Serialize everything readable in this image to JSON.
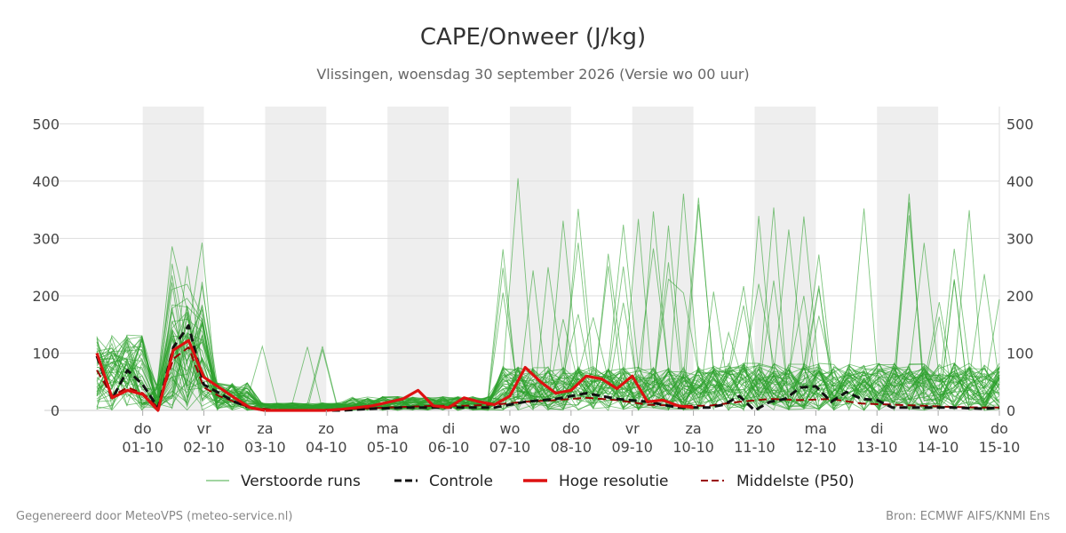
{
  "chart_data": {
    "type": "line",
    "title": "CAPE/Onweer (J/kg)",
    "subtitle": "Vlissingen, woensdag 30 september 2026 (Versie wo 00 uur)",
    "ylim": [
      0,
      530
    ],
    "yticks": [
      0,
      100,
      200,
      300,
      400,
      500
    ],
    "x_start": 0,
    "x_end": 14.75,
    "x_ticks": [
      {
        "day": "do",
        "date": "01-10",
        "t": 0.75
      },
      {
        "day": "vr",
        "date": "02-10",
        "t": 1.75
      },
      {
        "day": "za",
        "date": "03-10",
        "t": 2.75
      },
      {
        "day": "zo",
        "date": "04-10",
        "t": 3.75
      },
      {
        "day": "ma",
        "date": "05-10",
        "t": 4.75
      },
      {
        "day": "di",
        "date": "06-10",
        "t": 5.75
      },
      {
        "day": "wo",
        "date": "07-10",
        "t": 6.75
      },
      {
        "day": "do",
        "date": "08-10",
        "t": 7.75
      },
      {
        "day": "vr",
        "date": "09-10",
        "t": 8.75
      },
      {
        "day": "za",
        "date": "10-10",
        "t": 9.75
      },
      {
        "day": "zo",
        "date": "11-10",
        "t": 10.75
      },
      {
        "day": "ma",
        "date": "12-10",
        "t": 11.75
      },
      {
        "day": "di",
        "date": "13-10",
        "t": 12.75
      },
      {
        "day": "wo",
        "date": "14-10",
        "t": 13.75
      },
      {
        "day": "do",
        "date": "15-10",
        "t": 14.75
      }
    ],
    "night_bands": [
      [
        0.75,
        1.75
      ],
      [
        2.75,
        3.75
      ],
      [
        4.75,
        5.75
      ],
      [
        6.75,
        7.75
      ],
      [
        8.75,
        9.75
      ],
      [
        10.75,
        11.75
      ],
      [
        12.75,
        13.75
      ]
    ],
    "series": [
      {
        "name": "Hoge resolutie",
        "color": "#dd1111",
        "style": "solid",
        "x": [
          0,
          0.25,
          0.5,
          0.75,
          1.0,
          1.25,
          1.5,
          1.75,
          2.0,
          2.25,
          2.5,
          2.75,
          3.0,
          3.25,
          3.5,
          3.75,
          4.0,
          4.25,
          4.5,
          4.75,
          5.0,
          5.25,
          5.5,
          5.75,
          6.0,
          6.25,
          6.5,
          6.75,
          7.0,
          7.25,
          7.5,
          7.75,
          8.0,
          8.25,
          8.5,
          8.75,
          9.0,
          9.25,
          9.5,
          9.75
        ],
        "y": [
          100,
          22,
          35,
          28,
          0,
          105,
          122,
          58,
          40,
          22,
          5,
          0,
          0,
          0,
          0,
          0,
          2,
          5,
          8,
          14,
          20,
          35,
          8,
          5,
          22,
          15,
          10,
          25,
          75,
          50,
          30,
          35,
          60,
          55,
          38,
          60,
          15,
          18,
          8,
          5
        ]
      },
      {
        "name": "Controle",
        "color": "#111111",
        "style": "dash",
        "x": [
          0,
          0.25,
          0.5,
          0.75,
          1.0,
          1.25,
          1.5,
          1.75,
          2.0,
          2.25,
          2.5,
          2.75,
          3.0,
          3.5,
          4.0,
          4.5,
          5.0,
          5.5,
          6.0,
          6.5,
          7.0,
          7.5,
          8.0,
          8.5,
          9.0,
          9.5,
          10.0,
          10.25,
          10.5,
          10.75,
          11.0,
          11.25,
          11.5,
          11.75,
          12.0,
          12.25,
          12.5,
          12.75,
          13.0,
          13.5,
          14.0,
          14.5,
          14.75
        ],
        "y": [
          95,
          20,
          70,
          45,
          5,
          110,
          148,
          45,
          30,
          15,
          5,
          0,
          0,
          0,
          0,
          3,
          5,
          5,
          5,
          5,
          15,
          20,
          30,
          20,
          15,
          5,
          5,
          10,
          25,
          0,
          15,
          20,
          40,
          42,
          15,
          32,
          20,
          18,
          5,
          5,
          5,
          3,
          5
        ]
      },
      {
        "name": "Middelste (P50)",
        "color": "#990000",
        "style": "dash",
        "x": [
          0,
          0.25,
          0.5,
          0.75,
          1.0,
          1.25,
          1.5,
          1.75,
          2.0,
          2.5,
          3.0,
          3.5,
          4.0,
          4.5,
          5.0,
          5.5,
          6.0,
          6.5,
          7.0,
          7.5,
          8.0,
          8.5,
          9.0,
          9.5,
          10.0,
          10.5,
          11.0,
          11.5,
          12.0,
          12.5,
          13.0,
          13.5,
          14.0,
          14.5,
          14.75
        ],
        "y": [
          70,
          25,
          40,
          30,
          5,
          90,
          110,
          40,
          25,
          5,
          0,
          0,
          2,
          4,
          6,
          8,
          8,
          10,
          15,
          18,
          22,
          18,
          10,
          8,
          8,
          15,
          20,
          18,
          20,
          12,
          10,
          8,
          6,
          5,
          5
        ]
      }
    ],
    "ensemble": {
      "name": "Verstoorde runs",
      "color": "#2ca02c",
      "count": 50
    }
  },
  "legend": {
    "items": [
      {
        "label": "Verstoorde runs"
      },
      {
        "label": "Controle"
      },
      {
        "label": "Hoge resolutie"
      },
      {
        "label": "Middelste (P50)"
      }
    ]
  },
  "footer": {
    "left": "Gegenereerd door MeteoVPS (meteo-service.nl)",
    "right": "Bron: ECMWF AIFS/KNMI Ens"
  }
}
